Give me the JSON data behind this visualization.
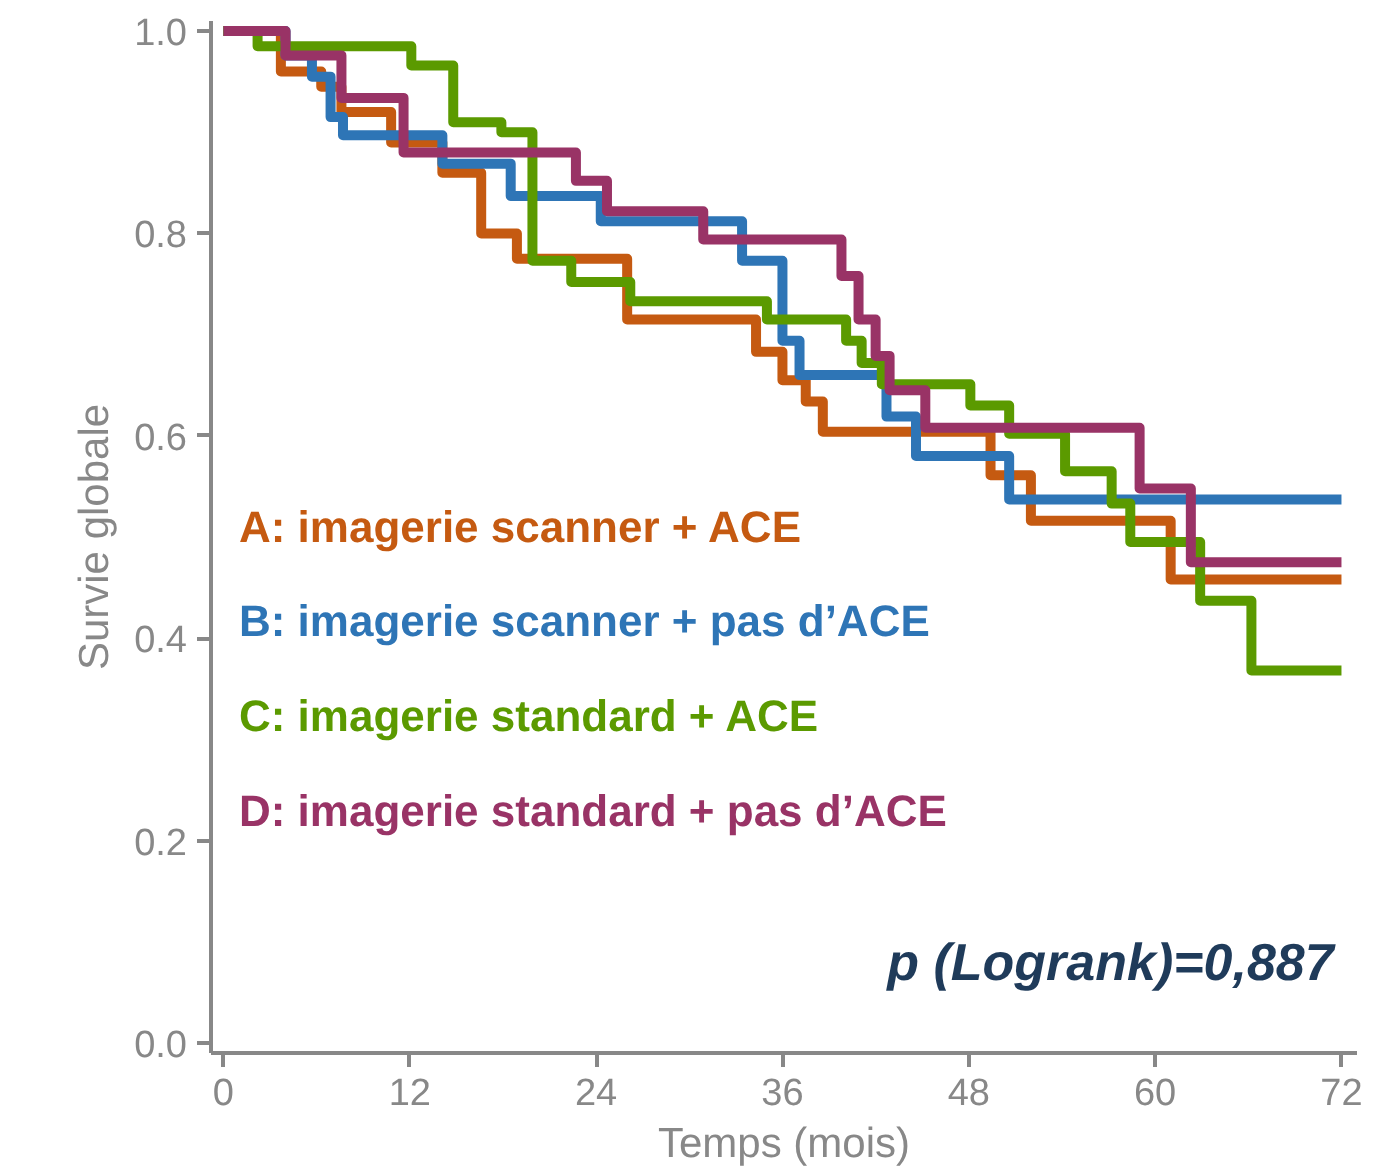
{
  "chart_data": {
    "type": "step",
    "xlabel": "Temps (mois)",
    "ylabel": "Survie globale",
    "xlim": [
      -0.8,
      73
    ],
    "ylim": [
      -0.01,
      1.01
    ],
    "xticks": [
      0,
      12,
      24,
      36,
      48,
      60,
      72
    ],
    "yticks": [
      {
        "value": 0,
        "label": "0.0"
      },
      {
        "value": 0.2,
        "label": "0.2"
      },
      {
        "value": 0.4,
        "label": "0.4"
      },
      {
        "value": 0.6,
        "label": "0.6"
      },
      {
        "value": 0.8,
        "label": "0.8"
      },
      {
        "value": 1,
        "label": "1.0"
      }
    ],
    "grid": false,
    "legend": "left",
    "line_style": "solid",
    "marker": "none",
    "annotations": [
      "p (Logrank)=0,887"
    ],
    "series": [
      {
        "name": "A: imagerie scanner + ACE",
        "color": "#c55a11",
        "x": [
          0,
          3.7,
          6.3,
          7.6,
          10.8,
          14.1,
          16.6,
          18.9,
          26,
          34.3,
          36,
          37.5,
          38.6,
          49.4,
          52,
          61,
          72
        ],
        "values": [
          1.0,
          0.96,
          0.945,
          0.92,
          0.89,
          0.86,
          0.8,
          0.775,
          0.715,
          0.683,
          0.655,
          0.634,
          0.604,
          0.561,
          0.516,
          0.458,
          0.458
        ]
      },
      {
        "name": "B: imagerie scanner + pas d’ACE",
        "color": "#2e75b6",
        "x": [
          0,
          4,
          5.7,
          6.9,
          7.7,
          14.1,
          18.5,
          24.3,
          33.4,
          36,
          37.1,
          42.7,
          44.6,
          50.6,
          72
        ],
        "values": [
          1.0,
          0.976,
          0.955,
          0.915,
          0.897,
          0.869,
          0.837,
          0.812,
          0.773,
          0.694,
          0.66,
          0.619,
          0.58,
          0.537,
          0.537
        ]
      },
      {
        "name": "C: imagerie standard + ACE",
        "color": "#5b9a00",
        "x": [
          0,
          2.2,
          12.1,
          14.8,
          17.9,
          19.9,
          22.4,
          26.2,
          35,
          40.1,
          41.1,
          42.4,
          48.1,
          50.6,
          54.2,
          57.2,
          58.4,
          62.9,
          66.2,
          72
        ],
        "values": [
          1.0,
          0.985,
          0.966,
          0.91,
          0.9,
          0.773,
          0.752,
          0.733,
          0.715,
          0.694,
          0.672,
          0.651,
          0.63,
          0.602,
          0.565,
          0.533,
          0.495,
          0.437,
          0.368,
          0.368
        ]
      },
      {
        "name": "D: imagerie standard + pas d’ACE",
        "color": "#993366",
        "x": [
          0,
          4,
          7.6,
          11.6,
          22.7,
          24.7,
          30.9,
          39.8,
          40.9,
          42,
          42.9,
          45.2,
          59,
          62.3,
          72
        ],
        "values": [
          1.0,
          0.976,
          0.934,
          0.88,
          0.852,
          0.822,
          0.794,
          0.758,
          0.715,
          0.679,
          0.645,
          0.608,
          0.548,
          0.475,
          0.475
        ]
      }
    ]
  }
}
